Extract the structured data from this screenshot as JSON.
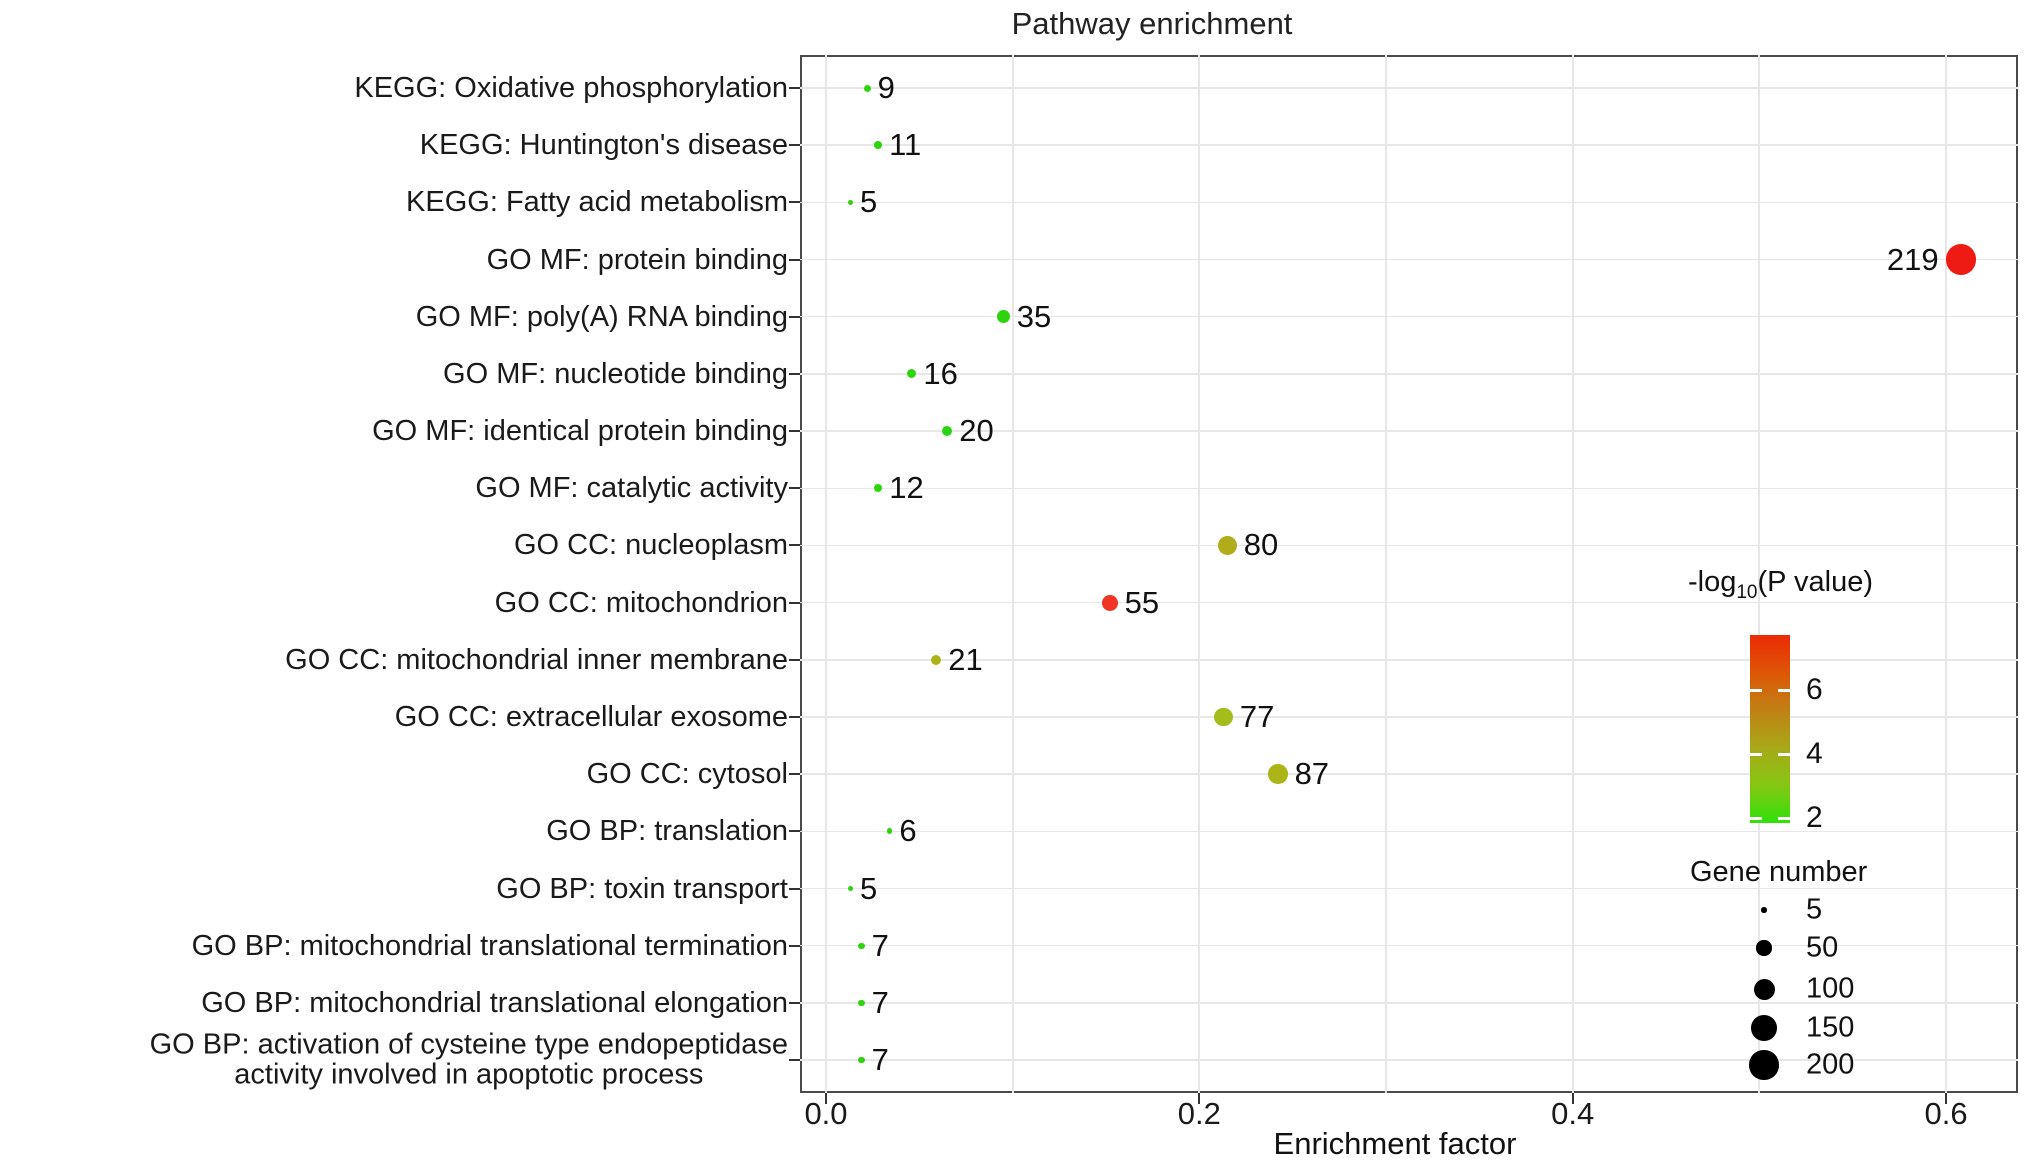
{
  "chart_data": {
    "type": "scatter",
    "title": "Pathway enrichment",
    "xlabel": "Enrichment factor",
    "x_ticks": [
      0.0,
      0.2,
      0.4,
      0.6
    ],
    "x_gridlines": [
      0.0,
      0.1,
      0.2,
      0.3,
      0.4,
      0.5,
      0.6
    ],
    "xlim": [
      -0.014,
      0.639
    ],
    "grid": true,
    "legend_position": "inside-right",
    "points": [
      {
        "category": "KEGG: Oxidative phosphorylation",
        "gene_number": 9,
        "enrichment_factor": 0.022,
        "neg_log10_p_approx": 2.2,
        "color": "#2fd30d",
        "label_side": "right"
      },
      {
        "category": "KEGG: Huntington's disease",
        "gene_number": 11,
        "enrichment_factor": 0.028,
        "neg_log10_p_approx": 2.3,
        "color": "#2fd30d",
        "label_side": "right"
      },
      {
        "category": "KEGG: Fatty acid metabolism",
        "gene_number": 5,
        "enrichment_factor": 0.013,
        "neg_log10_p_approx": 2.0,
        "color": "#2fd30d",
        "label_side": "right"
      },
      {
        "category": "GO MF: protein binding",
        "gene_number": 219,
        "enrichment_factor": 0.608,
        "neg_log10_p_approx": 7.0,
        "color": "#ee1b15",
        "label_side": "left"
      },
      {
        "category": "GO MF: poly(A) RNA binding",
        "gene_number": 35,
        "enrichment_factor": 0.095,
        "neg_log10_p_approx": 2.5,
        "color": "#2fd30d",
        "label_side": "right"
      },
      {
        "category": "GO MF: nucleotide binding",
        "gene_number": 16,
        "enrichment_factor": 0.046,
        "neg_log10_p_approx": 2.2,
        "color": "#2fd30d",
        "label_side": "right"
      },
      {
        "category": "GO MF: identical protein binding",
        "gene_number": 20,
        "enrichment_factor": 0.065,
        "neg_log10_p_approx": 2.4,
        "color": "#2bd315",
        "label_side": "right"
      },
      {
        "category": "GO MF: catalytic activity",
        "gene_number": 12,
        "enrichment_factor": 0.028,
        "neg_log10_p_approx": 2.1,
        "color": "#2fd30d",
        "label_side": "right"
      },
      {
        "category": "GO CC: nucleoplasm",
        "gene_number": 80,
        "enrichment_factor": 0.215,
        "neg_log10_p_approx": 4.4,
        "color": "#b1ad1a",
        "label_side": "right"
      },
      {
        "category": "GO CC: mitochondrion",
        "gene_number": 55,
        "enrichment_factor": 0.152,
        "neg_log10_p_approx": 6.5,
        "color": "#f13524",
        "label_side": "right"
      },
      {
        "category": "GO CC: mitochondrial inner membrane",
        "gene_number": 21,
        "enrichment_factor": 0.059,
        "neg_log10_p_approx": 4.2,
        "color": "#aab414",
        "label_side": "right"
      },
      {
        "category": "GO CC: extracellular exosome",
        "gene_number": 77,
        "enrichment_factor": 0.213,
        "neg_log10_p_approx": 4.1,
        "color": "#a4bd1c",
        "label_side": "right"
      },
      {
        "category": "GO CC: cytosol",
        "gene_number": 87,
        "enrichment_factor": 0.242,
        "neg_log10_p_approx": 4.3,
        "color": "#abb518",
        "label_side": "right"
      },
      {
        "category": "GO BP: translation",
        "gene_number": 6,
        "enrichment_factor": 0.034,
        "neg_log10_p_approx": 2.2,
        "color": "#2fd30d",
        "label_side": "right"
      },
      {
        "category": "GO BP: toxin transport",
        "gene_number": 5,
        "enrichment_factor": 0.013,
        "neg_log10_p_approx": 2.0,
        "color": "#2fd30d",
        "label_side": "right"
      },
      {
        "category": "GO BP: mitochondrial translational termination",
        "gene_number": 7,
        "enrichment_factor": 0.019,
        "neg_log10_p_approx": 2.2,
        "color": "#2fd30d",
        "label_side": "right"
      },
      {
        "category": "GO BP: mitochondrial translational elongation",
        "gene_number": 7,
        "enrichment_factor": 0.019,
        "neg_log10_p_approx": 2.2,
        "color": "#2fd30d",
        "label_side": "right"
      },
      {
        "category": "GO BP: activation of cysteine type endopeptidase\nactivity involved in apoptotic process",
        "gene_number": 7,
        "enrichment_factor": 0.019,
        "neg_log10_p_approx": 2.2,
        "color": "#2fd30d",
        "label_side": "right"
      }
    ],
    "color_legend": {
      "title_prefix": "-log",
      "title_sub": "10",
      "title_suffix": "(P value)",
      "ticks": [
        6,
        4,
        2
      ],
      "range_approx": [
        1.9,
        7.7
      ],
      "gradient_top_to_bottom": [
        "#ec2a04",
        "#dd5606",
        "#c08114",
        "#a8a818",
        "#86c713",
        "#2fe10a"
      ]
    },
    "size_legend": {
      "title": "Gene number",
      "entries": [
        5,
        50,
        100,
        150,
        200
      ],
      "dot_color": "#000000"
    }
  }
}
